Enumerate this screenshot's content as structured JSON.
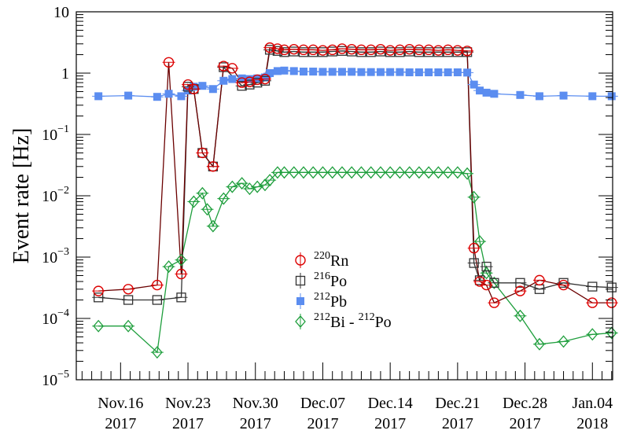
{
  "chart_data": {
    "type": "scatter",
    "title": "",
    "xlabel": "",
    "ylabel": "Event rate [Hz]",
    "yscale": "log",
    "ylim": [
      1e-05,
      10
    ],
    "xlim": [
      -4.6,
      51.1
    ],
    "x_unit": "days since Nov.16 2017",
    "grid": false,
    "legend_position": "center",
    "y_tick_labels": [
      {
        "value": 10,
        "label": "10",
        "exp": ""
      },
      {
        "value": 1,
        "label": "1",
        "exp": ""
      },
      {
        "value": 0.1,
        "label": "10",
        "exp": "−1"
      },
      {
        "value": 0.01,
        "label": "10",
        "exp": "−2"
      },
      {
        "value": 0.001,
        "label": "10",
        "exp": "−3"
      },
      {
        "value": 0.0001,
        "label": "10",
        "exp": "−4"
      },
      {
        "value": 1e-05,
        "label": "10",
        "exp": "−5"
      }
    ],
    "x_tick_labels": [
      {
        "value": 0,
        "line1": "Nov.16",
        "line2": "2017"
      },
      {
        "value": 7,
        "line1": "Nov.23",
        "line2": "2017"
      },
      {
        "value": 14,
        "line1": "Nov.30",
        "line2": "2017"
      },
      {
        "value": 21,
        "line1": "Dec.07",
        "line2": "2017"
      },
      {
        "value": 28,
        "line1": "Dec.14",
        "line2": "2017"
      },
      {
        "value": 35,
        "line1": "Dec.21",
        "line2": "2017"
      },
      {
        "value": 42,
        "line1": "Dec.28",
        "line2": "2017"
      },
      {
        "value": 49,
        "line1": "Jan.04",
        "line2": "2018"
      }
    ],
    "series": [
      {
        "name_sup": "220",
        "name_base": "Rn",
        "marker": "circle",
        "color": "#dd0000",
        "line_color": "#6b0000",
        "points": [
          [
            -2.3,
            0.00028
          ],
          [
            0.8,
            0.0003
          ],
          [
            3.8,
            0.00035
          ],
          [
            5.0,
            1.5
          ],
          [
            6.3,
            0.00053
          ],
          [
            7.0,
            0.65
          ],
          [
            7.6,
            0.55
          ],
          [
            8.5,
            0.05
          ],
          [
            9.6,
            0.03
          ],
          [
            10.7,
            1.3
          ],
          [
            11.6,
            1.2
          ],
          [
            12.6,
            0.7
          ],
          [
            13.4,
            0.72
          ],
          [
            14.2,
            0.78
          ],
          [
            15.0,
            0.8
          ],
          [
            15.5,
            2.6
          ],
          [
            16.3,
            2.5
          ],
          [
            17.0,
            2.4
          ],
          [
            18.0,
            2.45
          ],
          [
            19.0,
            2.4
          ],
          [
            20.0,
            2.4
          ],
          [
            21.0,
            2.35
          ],
          [
            22.0,
            2.4
          ],
          [
            23.0,
            2.5
          ],
          [
            24.0,
            2.45
          ],
          [
            25.0,
            2.4
          ],
          [
            26.0,
            2.4
          ],
          [
            27.0,
            2.45
          ],
          [
            28.0,
            2.35
          ],
          [
            29.0,
            2.4
          ],
          [
            30.0,
            2.45
          ],
          [
            31.0,
            2.4
          ],
          [
            32.0,
            2.4
          ],
          [
            33.0,
            2.35
          ],
          [
            34.0,
            2.4
          ],
          [
            35.0,
            2.35
          ],
          [
            36.0,
            2.3
          ],
          [
            36.7,
            0.0014
          ],
          [
            37.3,
            0.0004
          ],
          [
            38.0,
            0.00035
          ],
          [
            38.8,
            0.00018
          ],
          [
            41.5,
            0.00028
          ],
          [
            43.5,
            0.00042
          ],
          [
            46.0,
            0.00035
          ],
          [
            49.0,
            0.00018
          ],
          [
            51.0,
            0.00018
          ]
        ]
      },
      {
        "name_sup": "216",
        "name_base": "Po",
        "marker": "square",
        "color": "#333333",
        "line_color": "#333333",
        "points": [
          [
            -2.3,
            0.00022
          ],
          [
            0.8,
            0.0002
          ],
          [
            3.8,
            0.0002
          ],
          [
            6.3,
            0.00022
          ],
          [
            7.0,
            0.6
          ],
          [
            7.6,
            0.55
          ],
          [
            8.5,
            0.05
          ],
          [
            9.6,
            0.03
          ],
          [
            10.7,
            1.25
          ],
          [
            12.6,
            0.62
          ],
          [
            13.4,
            0.65
          ],
          [
            14.2,
            0.7
          ],
          [
            15.0,
            0.75
          ],
          [
            15.5,
            2.4
          ],
          [
            16.3,
            2.3
          ],
          [
            17.0,
            2.2
          ],
          [
            18.0,
            2.25
          ],
          [
            19.0,
            2.2
          ],
          [
            20.0,
            2.2
          ],
          [
            21.0,
            2.2
          ],
          [
            22.0,
            2.25
          ],
          [
            23.0,
            2.3
          ],
          [
            24.0,
            2.25
          ],
          [
            25.0,
            2.2
          ],
          [
            26.0,
            2.2
          ],
          [
            27.0,
            2.25
          ],
          [
            28.0,
            2.2
          ],
          [
            29.0,
            2.2
          ],
          [
            30.0,
            2.25
          ],
          [
            31.0,
            2.2
          ],
          [
            32.0,
            2.2
          ],
          [
            33.0,
            2.2
          ],
          [
            34.0,
            2.2
          ],
          [
            35.0,
            2.2
          ],
          [
            36.0,
            2.2
          ],
          [
            36.7,
            0.0008
          ],
          [
            37.3,
            0.00042
          ],
          [
            38.0,
            0.0007
          ],
          [
            38.8,
            0.00038
          ],
          [
            41.5,
            0.00038
          ],
          [
            43.5,
            0.0003
          ],
          [
            46.0,
            0.00038
          ],
          [
            49.0,
            0.00033
          ],
          [
            51.0,
            0.00032
          ]
        ]
      },
      {
        "name_sup": "212",
        "name_base": "Pb",
        "marker": "filled-square",
        "color": "#5b8df0",
        "line_color": "#5b8df0",
        "points": [
          [
            -2.3,
            0.42
          ],
          [
            0.8,
            0.43
          ],
          [
            3.8,
            0.41
          ],
          [
            5.0,
            0.46
          ],
          [
            6.3,
            0.42
          ],
          [
            7.0,
            0.52
          ],
          [
            7.6,
            0.6
          ],
          [
            8.5,
            0.62
          ],
          [
            9.6,
            0.55
          ],
          [
            10.7,
            0.75
          ],
          [
            11.6,
            0.8
          ],
          [
            12.6,
            0.82
          ],
          [
            13.4,
            0.8
          ],
          [
            14.2,
            0.82
          ],
          [
            15.0,
            0.85
          ],
          [
            15.5,
            1.0
          ],
          [
            16.3,
            1.08
          ],
          [
            17.0,
            1.1
          ],
          [
            18.0,
            1.08
          ],
          [
            19.0,
            1.06
          ],
          [
            20.0,
            1.06
          ],
          [
            21.0,
            1.05
          ],
          [
            22.0,
            1.05
          ],
          [
            23.0,
            1.05
          ],
          [
            24.0,
            1.05
          ],
          [
            25.0,
            1.04
          ],
          [
            26.0,
            1.04
          ],
          [
            27.0,
            1.04
          ],
          [
            28.0,
            1.04
          ],
          [
            29.0,
            1.04
          ],
          [
            30.0,
            1.03
          ],
          [
            31.0,
            1.03
          ],
          [
            32.0,
            1.03
          ],
          [
            33.0,
            1.03
          ],
          [
            34.0,
            1.03
          ],
          [
            35.0,
            1.03
          ],
          [
            36.0,
            1.02
          ],
          [
            36.7,
            0.65
          ],
          [
            37.3,
            0.52
          ],
          [
            38.0,
            0.48
          ],
          [
            38.8,
            0.46
          ],
          [
            41.5,
            0.44
          ],
          [
            43.5,
            0.42
          ],
          [
            46.0,
            0.43
          ],
          [
            49.0,
            0.42
          ],
          [
            51.0,
            0.42
          ]
        ]
      },
      {
        "name_sup": "212",
        "name_base": "Bi - ",
        "name_sup2": "212",
        "name_base2": "Po",
        "marker": "diamond",
        "color": "#1e9e3c",
        "line_color": "#1e9e3c",
        "points": [
          [
            -2.3,
            7.5e-05
          ],
          [
            0.8,
            7.5e-05
          ],
          [
            3.8,
            2.8e-05
          ],
          [
            5.0,
            0.0007
          ],
          [
            6.3,
            0.0009
          ],
          [
            7.6,
            0.008
          ],
          [
            8.5,
            0.011
          ],
          [
            9.0,
            0.006
          ],
          [
            9.6,
            0.0032
          ],
          [
            10.7,
            0.009
          ],
          [
            11.6,
            0.014
          ],
          [
            12.6,
            0.016
          ],
          [
            13.4,
            0.013
          ],
          [
            14.2,
            0.014
          ],
          [
            15.0,
            0.015
          ],
          [
            15.5,
            0.018
          ],
          [
            16.3,
            0.024
          ],
          [
            17.0,
            0.024
          ],
          [
            18.0,
            0.024
          ],
          [
            19.0,
            0.024
          ],
          [
            20.0,
            0.024
          ],
          [
            21.0,
            0.024
          ],
          [
            22.0,
            0.024
          ],
          [
            23.0,
            0.024
          ],
          [
            24.0,
            0.024
          ],
          [
            25.0,
            0.024
          ],
          [
            26.0,
            0.024
          ],
          [
            27.0,
            0.024
          ],
          [
            28.0,
            0.024
          ],
          [
            29.0,
            0.024
          ],
          [
            30.0,
            0.024
          ],
          [
            31.0,
            0.024
          ],
          [
            32.0,
            0.024
          ],
          [
            33.0,
            0.024
          ],
          [
            34.0,
            0.024
          ],
          [
            35.0,
            0.024
          ],
          [
            36.0,
            0.023
          ],
          [
            36.7,
            0.0095
          ],
          [
            37.3,
            0.0018
          ],
          [
            38.0,
            0.00055
          ],
          [
            38.8,
            0.00038
          ],
          [
            41.5,
            0.00011
          ],
          [
            43.5,
            3.8e-05
          ],
          [
            46.0,
            4.2e-05
          ],
          [
            49.0,
            5.5e-05
          ],
          [
            51.0,
            5.8e-05
          ]
        ]
      }
    ]
  }
}
